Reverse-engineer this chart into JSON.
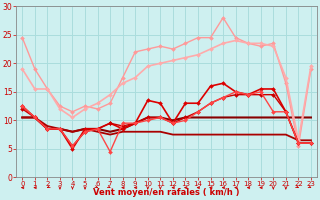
{
  "background_color": "#cef0f0",
  "grid_color": "#aadddd",
  "xlabel": "Vent moyen/en rafales ( km/h )",
  "xlabel_color": "#cc0000",
  "tick_color": "#cc0000",
  "xlim": [
    -0.5,
    23.5
  ],
  "ylim": [
    0,
    30
  ],
  "yticks": [
    0,
    5,
    10,
    15,
    20,
    25,
    30
  ],
  "xticks": [
    0,
    1,
    2,
    3,
    4,
    5,
    6,
    7,
    8,
    9,
    10,
    11,
    12,
    13,
    14,
    15,
    16,
    17,
    18,
    19,
    20,
    21,
    22,
    23
  ],
  "lines": [
    {
      "x": [
        0,
        1,
        2,
        3,
        4,
        5,
        6,
        7,
        8,
        9,
        10,
        11,
        12,
        13,
        14,
        15,
        16,
        17,
        18,
        19,
        20,
        21,
        22,
        23
      ],
      "y": [
        24.5,
        19.0,
        15.5,
        12.5,
        11.5,
        12.5,
        12.0,
        13.0,
        17.5,
        22.0,
        22.5,
        23.0,
        22.5,
        23.5,
        24.5,
        24.5,
        28.0,
        24.5,
        23.5,
        23.0,
        23.5,
        16.5,
        5.5,
        19.0
      ],
      "color": "#ff9999",
      "lw": 1.0,
      "marker": "D",
      "ms": 2.0
    },
    {
      "x": [
        0,
        1,
        2,
        3,
        4,
        5,
        6,
        7,
        8,
        9,
        10,
        11,
        12,
        13,
        14,
        15,
        16,
        17,
        18,
        19,
        20,
        21,
        22,
        23
      ],
      "y": [
        19.0,
        15.5,
        15.5,
        12.0,
        10.5,
        12.0,
        13.0,
        14.5,
        16.5,
        17.5,
        19.5,
        20.0,
        20.5,
        21.0,
        21.5,
        22.5,
        23.5,
        24.0,
        23.5,
        23.5,
        23.0,
        17.5,
        6.5,
        19.5
      ],
      "color": "#ffaaaa",
      "lw": 1.2,
      "marker": "D",
      "ms": 2.0
    },
    {
      "x": [
        0,
        1,
        2,
        3,
        4,
        5,
        6,
        7,
        8,
        9,
        10,
        11,
        12,
        13,
        14,
        15,
        16,
        17,
        18,
        19,
        20,
        21,
        22,
        23
      ],
      "y": [
        12.5,
        10.5,
        8.5,
        8.5,
        5.0,
        8.5,
        8.5,
        9.5,
        8.5,
        9.5,
        13.5,
        13.0,
        9.5,
        13.0,
        13.0,
        16.0,
        16.5,
        15.0,
        14.5,
        15.5,
        15.5,
        11.5,
        6.0,
        6.0
      ],
      "color": "#dd0000",
      "lw": 1.2,
      "marker": "D",
      "ms": 2.0
    },
    {
      "x": [
        0,
        1,
        2,
        3,
        4,
        5,
        6,
        7,
        8,
        9,
        10,
        11,
        12,
        13,
        14,
        15,
        16,
        17,
        18,
        19,
        20,
        21,
        22,
        23
      ],
      "y": [
        12.0,
        10.5,
        8.5,
        8.5,
        5.5,
        8.0,
        8.5,
        9.5,
        9.0,
        9.5,
        10.5,
        10.5,
        9.5,
        10.5,
        11.5,
        13.0,
        14.0,
        14.5,
        14.5,
        14.5,
        14.5,
        11.5,
        6.0,
        6.0
      ],
      "color": "#cc0000",
      "lw": 1.0,
      "marker": "D",
      "ms": 2.0
    },
    {
      "x": [
        0,
        1,
        2,
        3,
        4,
        5,
        6,
        7,
        8,
        9,
        10,
        11,
        12,
        13,
        14,
        15,
        16,
        17,
        18,
        19,
        20,
        21,
        22,
        23
      ],
      "y": [
        12.5,
        10.5,
        8.5,
        8.5,
        5.5,
        8.0,
        8.5,
        4.5,
        9.5,
        9.5,
        10.0,
        10.5,
        9.5,
        10.0,
        11.5,
        13.0,
        14.0,
        15.0,
        14.5,
        15.0,
        11.5,
        11.5,
        6.0,
        6.0
      ],
      "color": "#ff4444",
      "lw": 1.0,
      "marker": "D",
      "ms": 2.0
    },
    {
      "x": [
        0,
        1,
        2,
        3,
        4,
        5,
        6,
        7,
        8,
        9,
        10,
        11,
        12,
        13,
        14,
        15,
        16,
        17,
        18,
        19,
        20,
        21,
        22,
        23
      ],
      "y": [
        10.5,
        10.5,
        8.5,
        8.5,
        8.0,
        8.5,
        8.5,
        8.0,
        8.5,
        9.5,
        10.5,
        10.5,
        10.0,
        10.5,
        10.5,
        10.5,
        10.5,
        10.5,
        10.5,
        10.5,
        10.5,
        10.5,
        10.5,
        10.5
      ],
      "color": "#880000",
      "lw": 1.5,
      "marker": null,
      "ms": 0
    },
    {
      "x": [
        0,
        1,
        2,
        3,
        4,
        5,
        6,
        7,
        8,
        9,
        10,
        11,
        12,
        13,
        14,
        15,
        16,
        17,
        18,
        19,
        20,
        21,
        22,
        23
      ],
      "y": [
        10.5,
        10.5,
        9.0,
        8.5,
        8.0,
        8.5,
        8.0,
        7.5,
        8.0,
        8.0,
        8.0,
        8.0,
        7.5,
        7.5,
        7.5,
        7.5,
        7.5,
        7.5,
        7.5,
        7.5,
        7.5,
        7.5,
        6.5,
        6.5
      ],
      "color": "#aa0000",
      "lw": 1.3,
      "marker": null,
      "ms": 0
    }
  ],
  "arrow_directions": [
    270,
    270,
    315,
    0,
    0,
    0,
    45,
    45,
    270,
    270,
    0,
    0,
    270,
    270,
    270,
    270,
    270,
    270,
    270,
    270,
    0,
    0,
    45,
    45
  ]
}
